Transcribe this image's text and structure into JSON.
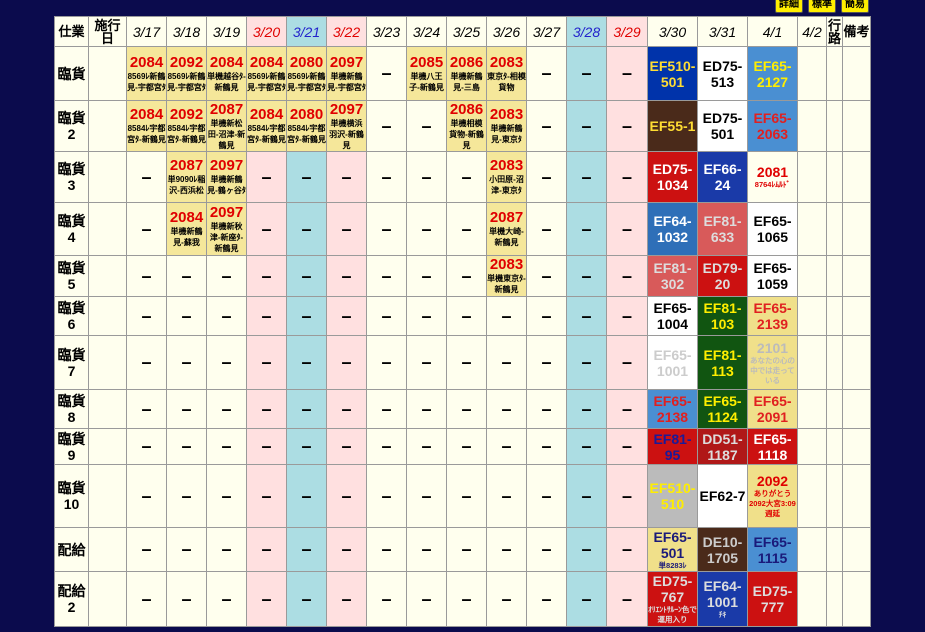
{
  "top_buttons": [
    {
      "label": "詳細"
    },
    {
      "label": "標準"
    },
    {
      "label": "簡易"
    }
  ],
  "header": {
    "col0": "仕業",
    "col1": "施行日",
    "dates": [
      {
        "label": "3/17",
        "t": "w"
      },
      {
        "label": "3/18",
        "t": "w"
      },
      {
        "label": "3/19",
        "t": "w"
      },
      {
        "label": "3/20",
        "t": "h"
      },
      {
        "label": "3/21",
        "t": "s"
      },
      {
        "label": "3/22",
        "t": "h"
      },
      {
        "label": "3/23",
        "t": "w"
      },
      {
        "label": "3/24",
        "t": "w"
      },
      {
        "label": "3/25",
        "t": "w"
      },
      {
        "label": "3/26",
        "t": "w"
      },
      {
        "label": "3/27",
        "t": "w"
      },
      {
        "label": "3/28",
        "t": "s"
      },
      {
        "label": "3/29",
        "t": "h"
      },
      {
        "label": "3/30",
        "t": "w"
      },
      {
        "label": "3/31",
        "t": "w"
      },
      {
        "label": "4/1",
        "t": "w"
      },
      {
        "label": "4/2",
        "t": "w"
      }
    ],
    "route": "行路",
    "notes": "備考"
  },
  "rows": [
    {
      "label": "臨貨",
      "cells": [
        {
          "t": "tr",
          "n": "2084",
          "s": "8569ﾚ新鶴見-宇都宮ﾀ"
        },
        {
          "t": "tr",
          "n": "2092",
          "s": "8569ﾚ新鶴見-宇都宮ﾀ"
        },
        {
          "t": "tr",
          "n": "2084",
          "s": "単機越谷ﾀ-新鶴見"
        },
        {
          "t": "tr",
          "n": "2084",
          "s": "8569ﾚ新鶴見-宇都宮ﾀ"
        },
        {
          "t": "tr",
          "n": "2080",
          "s": "8569ﾚ新鶴見-宇都宮ﾀ"
        },
        {
          "t": "tr",
          "n": "2097",
          "s": "単機新鶴見-宇都宮ﾀ"
        },
        {
          "t": "d"
        },
        {
          "t": "tr",
          "n": "2085",
          "s": "単機八王子-新鶴見"
        },
        {
          "t": "tr",
          "n": "2086",
          "s": "単機新鶴見-三島"
        },
        {
          "t": "tr",
          "n": "2083",
          "s": "東京ﾀ-相模貨物"
        },
        {
          "t": "d"
        },
        {
          "t": "d"
        },
        {
          "t": "d"
        },
        {
          "t": "c",
          "n": "EF510-501",
          "bg": "#0033aa",
          "fg": "#ffdd33"
        },
        {
          "t": "c",
          "n": "ED75-513",
          "bg": "#ffffff",
          "fg": "#000000"
        },
        {
          "t": "c",
          "n": "EF65-2127",
          "bg": "#4a8fd2",
          "fg": "#ffee00"
        }
      ]
    },
    {
      "label": "臨貨2",
      "cells": [
        {
          "t": "tr",
          "n": "2084",
          "s": "8584ﾚ宇都宮ﾀ-新鶴見"
        },
        {
          "t": "tr",
          "n": "2092",
          "s": "8584ﾚ宇都宮ﾀ-新鶴見"
        },
        {
          "t": "tr",
          "n": "2087",
          "s": "単機新松田-沼津-新鶴見"
        },
        {
          "t": "tr",
          "n": "2084",
          "s": "8584ﾚ宇都宮ﾀ-新鶴見"
        },
        {
          "t": "tr",
          "n": "2080",
          "s": "8584ﾚ宇都宮ﾀ-新鶴見"
        },
        {
          "t": "tr",
          "n": "2097",
          "s": "単機横浜羽沢-新鶴見"
        },
        {
          "t": "d"
        },
        {
          "t": "d"
        },
        {
          "t": "tr",
          "n": "2086",
          "s": "単機相模貨物-新鶴見"
        },
        {
          "t": "tr",
          "n": "2083",
          "s": "単機新鶴見-東京ﾀ"
        },
        {
          "t": "d"
        },
        {
          "t": "d"
        },
        {
          "t": "d"
        },
        {
          "t": "c",
          "n": "EF55-1",
          "bg": "#4a2a1a",
          "fg": "#ffdd33"
        },
        {
          "t": "c",
          "n": "ED75-501",
          "bg": "#ffffff",
          "fg": "#000000"
        },
        {
          "t": "c",
          "n": "EF65-2063",
          "bg": "#4a8fd2",
          "fg": "#e02020"
        }
      ]
    },
    {
      "label": "臨貨3",
      "cells": [
        {
          "t": "d"
        },
        {
          "t": "tr",
          "n": "2087",
          "s": "単9090ﾚ稲沢-西浜松"
        },
        {
          "t": "tr",
          "n": "2097",
          "s": "単機新鶴見-鶴ヶ谷ﾀ"
        },
        {
          "t": "d"
        },
        {
          "t": "d"
        },
        {
          "t": "d"
        },
        {
          "t": "d"
        },
        {
          "t": "d"
        },
        {
          "t": "d"
        },
        {
          "t": "tr",
          "n": "2083",
          "s": "小田原-沼津-東京ﾀ"
        },
        {
          "t": "d"
        },
        {
          "t": "d"
        },
        {
          "t": "d"
        },
        {
          "t": "c",
          "n": "ED75-1034",
          "bg": "#cc1111",
          "fg": "#ffffff"
        },
        {
          "t": "c",
          "n": "EF66-24",
          "bg": "#1a3aa8",
          "fg": "#ffffff"
        },
        {
          "t": "c2",
          "n": "2081",
          "s": "8764ﾚﾑﾙﾄﾞ",
          "bg": "#ffffee",
          "fg": "#e00000"
        }
      ]
    },
    {
      "label": "臨貨4",
      "cells": [
        {
          "t": "d"
        },
        {
          "t": "tr",
          "n": "2084",
          "s": "単機新鶴見-蘇我"
        },
        {
          "t": "tr",
          "n": "2097",
          "s": "単機新秋津-新座ﾀ-新鶴見"
        },
        {
          "t": "d"
        },
        {
          "t": "d"
        },
        {
          "t": "d"
        },
        {
          "t": "d"
        },
        {
          "t": "d"
        },
        {
          "t": "d"
        },
        {
          "t": "tr",
          "n": "2087",
          "s": "単機大崎-新鶴見"
        },
        {
          "t": "d"
        },
        {
          "t": "d"
        },
        {
          "t": "d"
        },
        {
          "t": "c",
          "n": "EF64-1032",
          "bg": "#2e6fb8",
          "fg": "#ffffff"
        },
        {
          "t": "c",
          "n": "EF81-633",
          "bg": "#d85a5a",
          "fg": "#dddddd"
        },
        {
          "t": "c",
          "n": "EF65-1065",
          "bg": "#ffffff",
          "fg": "#000000"
        }
      ]
    },
    {
      "label": "臨貨5",
      "cells": [
        {
          "t": "d"
        },
        {
          "t": "d"
        },
        {
          "t": "d"
        },
        {
          "t": "d"
        },
        {
          "t": "d"
        },
        {
          "t": "d"
        },
        {
          "t": "d"
        },
        {
          "t": "d"
        },
        {
          "t": "d"
        },
        {
          "t": "tr",
          "n": "2083",
          "s": "単機東京ﾀ-新鶴見"
        },
        {
          "t": "d"
        },
        {
          "t": "d"
        },
        {
          "t": "d"
        },
        {
          "t": "c",
          "n": "EF81-302",
          "bg": "#d85a5a",
          "fg": "#dddddd"
        },
        {
          "t": "c",
          "n": "ED79-20",
          "bg": "#cc1111",
          "fg": "#dddddd"
        },
        {
          "t": "c",
          "n": "EF65-1059",
          "bg": "#ffffff",
          "fg": "#000000"
        }
      ]
    },
    {
      "label": "臨貨6",
      "cells": [
        {
          "t": "d"
        },
        {
          "t": "d"
        },
        {
          "t": "d"
        },
        {
          "t": "d"
        },
        {
          "t": "d"
        },
        {
          "t": "d"
        },
        {
          "t": "d"
        },
        {
          "t": "d"
        },
        {
          "t": "d"
        },
        {
          "t": "d"
        },
        {
          "t": "d"
        },
        {
          "t": "d"
        },
        {
          "t": "d"
        },
        {
          "t": "c",
          "n": "EF65-1004",
          "bg": "#ffffff",
          "fg": "#000000"
        },
        {
          "t": "c",
          "n": "EF81-103",
          "bg": "#115511",
          "fg": "#ffee00"
        },
        {
          "t": "c",
          "n": "EF65-2139",
          "bg": "#f0e08a",
          "fg": "#e02020"
        }
      ]
    },
    {
      "label": "臨貨7",
      "cells": [
        {
          "t": "d"
        },
        {
          "t": "d"
        },
        {
          "t": "d"
        },
        {
          "t": "d"
        },
        {
          "t": "d"
        },
        {
          "t": "d"
        },
        {
          "t": "d"
        },
        {
          "t": "d"
        },
        {
          "t": "d"
        },
        {
          "t": "d"
        },
        {
          "t": "d"
        },
        {
          "t": "d"
        },
        {
          "t": "d"
        },
        {
          "t": "c",
          "n": "EF65-1001",
          "bg": "#ffffff",
          "fg": "#cccccc"
        },
        {
          "t": "c",
          "n": "EF81-113",
          "bg": "#115511",
          "fg": "#ffee00"
        },
        {
          "t": "c2",
          "n": "2101",
          "s": "あなたの心の中では走っている",
          "bg": "#f0e08a",
          "fg": "#bbbbbb"
        }
      ]
    },
    {
      "label": "臨貨8",
      "cells": [
        {
          "t": "d"
        },
        {
          "t": "d"
        },
        {
          "t": "d"
        },
        {
          "t": "d"
        },
        {
          "t": "d"
        },
        {
          "t": "d"
        },
        {
          "t": "d"
        },
        {
          "t": "d"
        },
        {
          "t": "d"
        },
        {
          "t": "d"
        },
        {
          "t": "d"
        },
        {
          "t": "d"
        },
        {
          "t": "d"
        },
        {
          "t": "c",
          "n": "EF65-2138",
          "bg": "#4a8fd2",
          "fg": "#e02020"
        },
        {
          "t": "c",
          "n": "EF65-1124",
          "bg": "#115511",
          "fg": "#ffee00"
        },
        {
          "t": "c",
          "n": "EF65-2091",
          "bg": "#f0e08a",
          "fg": "#e02020"
        }
      ]
    },
    {
      "label": "臨貨9",
      "cells": [
        {
          "t": "d"
        },
        {
          "t": "d"
        },
        {
          "t": "d"
        },
        {
          "t": "d"
        },
        {
          "t": "d"
        },
        {
          "t": "d"
        },
        {
          "t": "d"
        },
        {
          "t": "d"
        },
        {
          "t": "d"
        },
        {
          "t": "d"
        },
        {
          "t": "d"
        },
        {
          "t": "d"
        },
        {
          "t": "d"
        },
        {
          "t": "c",
          "n": "EF81-95",
          "bg": "#cc1111",
          "fg": "#1a1a9a"
        },
        {
          "t": "c",
          "n": "DD51-1187",
          "bg": "#b01818",
          "fg": "#dddddd"
        },
        {
          "t": "c",
          "n": "EF65-1118",
          "bg": "#cc1111",
          "fg": "#ffffff"
        }
      ]
    },
    {
      "label": "臨貨10",
      "cells": [
        {
          "t": "d"
        },
        {
          "t": "d"
        },
        {
          "t": "d"
        },
        {
          "t": "d"
        },
        {
          "t": "d"
        },
        {
          "t": "d"
        },
        {
          "t": "d"
        },
        {
          "t": "d"
        },
        {
          "t": "d"
        },
        {
          "t": "d"
        },
        {
          "t": "d"
        },
        {
          "t": "d"
        },
        {
          "t": "d"
        },
        {
          "t": "c",
          "n": "EF510-510",
          "bg": "#bbbbbb",
          "fg": "#ffee00"
        },
        {
          "t": "c",
          "n": "EF62-7",
          "bg": "#ffffff",
          "fg": "#000000"
        },
        {
          "t": "c2",
          "n": "2092",
          "s": "ありがとう2092大宮3:09週延",
          "bg": "#f0e08a",
          "fg": "#e00000"
        }
      ]
    },
    {
      "label": "配給",
      "cells": [
        {
          "t": "d"
        },
        {
          "t": "d"
        },
        {
          "t": "d"
        },
        {
          "t": "d"
        },
        {
          "t": "d"
        },
        {
          "t": "d"
        },
        {
          "t": "d"
        },
        {
          "t": "d"
        },
        {
          "t": "d"
        },
        {
          "t": "d"
        },
        {
          "t": "d"
        },
        {
          "t": "d"
        },
        {
          "t": "d"
        },
        {
          "t": "c3",
          "n": "EF65-501",
          "s": "単8283ﾚ",
          "bg": "#f0e08a",
          "fg": "#1a1a7a"
        },
        {
          "t": "c",
          "n": "DE10-1705",
          "bg": "#4a2a1a",
          "fg": "#cccccc"
        },
        {
          "t": "c",
          "n": "EF65-1115",
          "bg": "#4a8fd2",
          "fg": "#1a1a7a"
        }
      ]
    },
    {
      "label": "配給2",
      "cells": [
        {
          "t": "d"
        },
        {
          "t": "d"
        },
        {
          "t": "d"
        },
        {
          "t": "d"
        },
        {
          "t": "d"
        },
        {
          "t": "d"
        },
        {
          "t": "d"
        },
        {
          "t": "d"
        },
        {
          "t": "d"
        },
        {
          "t": "d"
        },
        {
          "t": "d"
        },
        {
          "t": "d"
        },
        {
          "t": "d"
        },
        {
          "t": "c3",
          "n": "ED75-767",
          "s": "ｵﾘｴﾝﾄｻﾙｰﾝ色で運用入り",
          "bg": "#cc1111",
          "fg": "#dddddd"
        },
        {
          "t": "c3",
          "n": "EF64-1001",
          "s": "ﾁｷ",
          "bg": "#1a3aa8",
          "fg": "#dddddd"
        },
        {
          "t": "c",
          "n": "ED75-777",
          "bg": "#cc1111",
          "fg": "#dddddd"
        }
      ]
    }
  ]
}
